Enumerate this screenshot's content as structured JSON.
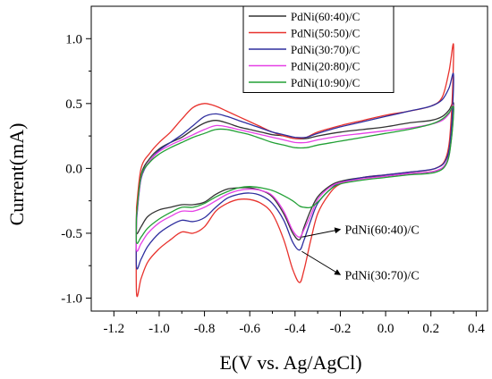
{
  "chart_data": {
    "type": "line",
    "title": "",
    "xlabel": "E(V vs. Ag/AgCl)",
    "ylabel": "Current(mA)",
    "xlim": [
      -1.3,
      0.45
    ],
    "ylim": [
      -1.1,
      1.25
    ],
    "x_ticks": [
      -1.2,
      -1.0,
      -0.8,
      -0.6,
      -0.4,
      -0.2,
      0.0,
      0.2,
      0.4
    ],
    "x_tick_labels": [
      "-1.2",
      "-1.0",
      "-0.8",
      "-0.6",
      "-0.4",
      "-0.2",
      "0.0",
      "0.2",
      "0.4"
    ],
    "y_ticks": [
      -1.0,
      -0.5,
      0.0,
      0.5,
      1.0
    ],
    "y_tick_labels": [
      "-1.0",
      "-0.5",
      "0.0",
      "0.5",
      "1.0"
    ],
    "grid": false,
    "legend_position": "top-right",
    "series": [
      {
        "name": "PdNi(60:40)/C",
        "color": "#333333",
        "forward": [
          [
            -1.1,
            -0.35
          ],
          [
            -1.08,
            -0.05
          ],
          [
            -1.04,
            0.08
          ],
          [
            -1.0,
            0.15
          ],
          [
            -0.95,
            0.2
          ],
          [
            -0.9,
            0.24
          ],
          [
            -0.85,
            0.3
          ],
          [
            -0.8,
            0.35
          ],
          [
            -0.75,
            0.37
          ],
          [
            -0.7,
            0.35
          ],
          [
            -0.65,
            0.32
          ],
          [
            -0.6,
            0.3
          ],
          [
            -0.55,
            0.28
          ],
          [
            -0.5,
            0.26
          ],
          [
            -0.45,
            0.25
          ],
          [
            -0.4,
            0.23
          ],
          [
            -0.35,
            0.23
          ],
          [
            -0.3,
            0.25
          ],
          [
            -0.2,
            0.28
          ],
          [
            -0.1,
            0.3
          ],
          [
            0.0,
            0.32
          ],
          [
            0.1,
            0.35
          ],
          [
            0.2,
            0.37
          ],
          [
            0.25,
            0.4
          ],
          [
            0.28,
            0.45
          ],
          [
            0.3,
            0.5
          ]
        ],
        "reverse": [
          [
            0.3,
            0.5
          ],
          [
            0.29,
            0.25
          ],
          [
            0.27,
            0.05
          ],
          [
            0.22,
            -0.02
          ],
          [
            0.1,
            -0.04
          ],
          [
            0.0,
            -0.06
          ],
          [
            -0.1,
            -0.07
          ],
          [
            -0.2,
            -0.1
          ],
          [
            -0.25,
            -0.14
          ],
          [
            -0.3,
            -0.22
          ],
          [
            -0.33,
            -0.32
          ],
          [
            -0.36,
            -0.45
          ],
          [
            -0.38,
            -0.55
          ],
          [
            -0.41,
            -0.5
          ],
          [
            -0.45,
            -0.35
          ],
          [
            -0.5,
            -0.22
          ],
          [
            -0.55,
            -0.17
          ],
          [
            -0.6,
            -0.15
          ],
          [
            -0.65,
            -0.15
          ],
          [
            -0.7,
            -0.16
          ],
          [
            -0.75,
            -0.2
          ],
          [
            -0.8,
            -0.26
          ],
          [
            -0.85,
            -0.28
          ],
          [
            -0.9,
            -0.28
          ],
          [
            -0.95,
            -0.3
          ],
          [
            -1.0,
            -0.32
          ],
          [
            -1.05,
            -0.37
          ],
          [
            -1.08,
            -0.45
          ],
          [
            -1.1,
            -0.5
          ],
          [
            -1.1,
            -0.35
          ]
        ]
      },
      {
        "name": "PdNi(50:50)/C",
        "color": "#e8322d",
        "forward": [
          [
            -1.1,
            -0.3
          ],
          [
            -1.08,
            0.0
          ],
          [
            -1.04,
            0.12
          ],
          [
            -1.0,
            0.2
          ],
          [
            -0.95,
            0.28
          ],
          [
            -0.9,
            0.38
          ],
          [
            -0.85,
            0.47
          ],
          [
            -0.8,
            0.5
          ],
          [
            -0.75,
            0.48
          ],
          [
            -0.7,
            0.44
          ],
          [
            -0.65,
            0.4
          ],
          [
            -0.6,
            0.36
          ],
          [
            -0.55,
            0.32
          ],
          [
            -0.5,
            0.28
          ],
          [
            -0.45,
            0.25
          ],
          [
            -0.4,
            0.23
          ],
          [
            -0.35,
            0.24
          ],
          [
            -0.3,
            0.28
          ],
          [
            -0.2,
            0.33
          ],
          [
            -0.1,
            0.37
          ],
          [
            0.0,
            0.41
          ],
          [
            0.1,
            0.44
          ],
          [
            0.2,
            0.48
          ],
          [
            0.25,
            0.55
          ],
          [
            0.28,
            0.75
          ],
          [
            0.3,
            0.95
          ]
        ],
        "reverse": [
          [
            0.3,
            0.95
          ],
          [
            0.29,
            0.4
          ],
          [
            0.27,
            0.1
          ],
          [
            0.22,
            0.0
          ],
          [
            0.1,
            -0.03
          ],
          [
            0.0,
            -0.05
          ],
          [
            -0.1,
            -0.07
          ],
          [
            -0.2,
            -0.12
          ],
          [
            -0.25,
            -0.2
          ],
          [
            -0.3,
            -0.35
          ],
          [
            -0.33,
            -0.55
          ],
          [
            -0.36,
            -0.78
          ],
          [
            -0.38,
            -0.88
          ],
          [
            -0.41,
            -0.78
          ],
          [
            -0.45,
            -0.55
          ],
          [
            -0.5,
            -0.35
          ],
          [
            -0.55,
            -0.27
          ],
          [
            -0.6,
            -0.24
          ],
          [
            -0.65,
            -0.24
          ],
          [
            -0.7,
            -0.27
          ],
          [
            -0.75,
            -0.33
          ],
          [
            -0.8,
            -0.45
          ],
          [
            -0.85,
            -0.5
          ],
          [
            -0.9,
            -0.49
          ],
          [
            -0.95,
            -0.55
          ],
          [
            -1.0,
            -0.62
          ],
          [
            -1.05,
            -0.72
          ],
          [
            -1.08,
            -0.85
          ],
          [
            -1.1,
            -0.96
          ],
          [
            -1.1,
            -0.3
          ]
        ]
      },
      {
        "name": "PdNi(30:70)/C",
        "color": "#2e2e9e",
        "forward": [
          [
            -1.1,
            -0.4
          ],
          [
            -1.08,
            -0.08
          ],
          [
            -1.04,
            0.06
          ],
          [
            -1.0,
            0.14
          ],
          [
            -0.95,
            0.2
          ],
          [
            -0.9,
            0.26
          ],
          [
            -0.85,
            0.33
          ],
          [
            -0.8,
            0.4
          ],
          [
            -0.75,
            0.42
          ],
          [
            -0.7,
            0.4
          ],
          [
            -0.65,
            0.37
          ],
          [
            -0.6,
            0.34
          ],
          [
            -0.55,
            0.31
          ],
          [
            -0.5,
            0.28
          ],
          [
            -0.45,
            0.26
          ],
          [
            -0.4,
            0.24
          ],
          [
            -0.35,
            0.24
          ],
          [
            -0.3,
            0.27
          ],
          [
            -0.2,
            0.32
          ],
          [
            -0.1,
            0.36
          ],
          [
            0.0,
            0.4
          ],
          [
            0.1,
            0.44
          ],
          [
            0.2,
            0.48
          ],
          [
            0.25,
            0.53
          ],
          [
            0.28,
            0.62
          ],
          [
            0.3,
            0.72
          ]
        ],
        "reverse": [
          [
            0.3,
            0.72
          ],
          [
            0.29,
            0.3
          ],
          [
            0.27,
            0.08
          ],
          [
            0.22,
            0.0
          ],
          [
            0.1,
            -0.03
          ],
          [
            0.0,
            -0.05
          ],
          [
            -0.1,
            -0.07
          ],
          [
            -0.2,
            -0.11
          ],
          [
            -0.25,
            -0.17
          ],
          [
            -0.3,
            -0.27
          ],
          [
            -0.33,
            -0.4
          ],
          [
            -0.36,
            -0.55
          ],
          [
            -0.38,
            -0.63
          ],
          [
            -0.41,
            -0.57
          ],
          [
            -0.45,
            -0.4
          ],
          [
            -0.5,
            -0.27
          ],
          [
            -0.55,
            -0.21
          ],
          [
            -0.6,
            -0.19
          ],
          [
            -0.65,
            -0.2
          ],
          [
            -0.7,
            -0.23
          ],
          [
            -0.75,
            -0.3
          ],
          [
            -0.8,
            -0.38
          ],
          [
            -0.85,
            -0.41
          ],
          [
            -0.9,
            -0.4
          ],
          [
            -0.95,
            -0.44
          ],
          [
            -1.0,
            -0.5
          ],
          [
            -1.05,
            -0.6
          ],
          [
            -1.08,
            -0.7
          ],
          [
            -1.1,
            -0.76
          ],
          [
            -1.1,
            -0.4
          ]
        ]
      },
      {
        "name": "PdNi(20:80)/C",
        "color": "#e640e6",
        "forward": [
          [
            -1.1,
            -0.38
          ],
          [
            -1.08,
            -0.07
          ],
          [
            -1.04,
            0.06
          ],
          [
            -1.0,
            0.13
          ],
          [
            -0.95,
            0.18
          ],
          [
            -0.9,
            0.22
          ],
          [
            -0.85,
            0.26
          ],
          [
            -0.8,
            0.3
          ],
          [
            -0.75,
            0.33
          ],
          [
            -0.7,
            0.32
          ],
          [
            -0.65,
            0.3
          ],
          [
            -0.6,
            0.28
          ],
          [
            -0.55,
            0.26
          ],
          [
            -0.5,
            0.24
          ],
          [
            -0.45,
            0.22
          ],
          [
            -0.4,
            0.2
          ],
          [
            -0.35,
            0.2
          ],
          [
            -0.3,
            0.22
          ],
          [
            -0.2,
            0.25
          ],
          [
            -0.1,
            0.27
          ],
          [
            0.0,
            0.29
          ],
          [
            0.1,
            0.31
          ],
          [
            0.2,
            0.34
          ],
          [
            0.25,
            0.37
          ],
          [
            0.28,
            0.42
          ],
          [
            0.3,
            0.48
          ]
        ],
        "reverse": [
          [
            0.3,
            0.48
          ],
          [
            0.29,
            0.22
          ],
          [
            0.27,
            0.05
          ],
          [
            0.22,
            -0.02
          ],
          [
            0.1,
            -0.04
          ],
          [
            0.0,
            -0.06
          ],
          [
            -0.1,
            -0.08
          ],
          [
            -0.2,
            -0.11
          ],
          [
            -0.25,
            -0.15
          ],
          [
            -0.3,
            -0.24
          ],
          [
            -0.33,
            -0.36
          ],
          [
            -0.36,
            -0.47
          ],
          [
            -0.38,
            -0.53
          ],
          [
            -0.41,
            -0.48
          ],
          [
            -0.45,
            -0.33
          ],
          [
            -0.5,
            -0.21
          ],
          [
            -0.55,
            -0.17
          ],
          [
            -0.6,
            -0.16
          ],
          [
            -0.65,
            -0.17
          ],
          [
            -0.7,
            -0.2
          ],
          [
            -0.75,
            -0.25
          ],
          [
            -0.8,
            -0.3
          ],
          [
            -0.85,
            -0.33
          ],
          [
            -0.9,
            -0.33
          ],
          [
            -0.95,
            -0.37
          ],
          [
            -1.0,
            -0.42
          ],
          [
            -1.05,
            -0.5
          ],
          [
            -1.08,
            -0.58
          ],
          [
            -1.1,
            -0.63
          ],
          [
            -1.1,
            -0.38
          ]
        ]
      },
      {
        "name": "PdNi(10:90)/C",
        "color": "#22a035",
        "forward": [
          [
            -1.1,
            -0.36
          ],
          [
            -1.08,
            -0.06
          ],
          [
            -1.04,
            0.05
          ],
          [
            -1.0,
            0.11
          ],
          [
            -0.95,
            0.16
          ],
          [
            -0.9,
            0.2
          ],
          [
            -0.85,
            0.24
          ],
          [
            -0.8,
            0.27
          ],
          [
            -0.75,
            0.3
          ],
          [
            -0.7,
            0.3
          ],
          [
            -0.65,
            0.28
          ],
          [
            -0.6,
            0.26
          ],
          [
            -0.55,
            0.23
          ],
          [
            -0.5,
            0.2
          ],
          [
            -0.45,
            0.18
          ],
          [
            -0.4,
            0.16
          ],
          [
            -0.35,
            0.16
          ],
          [
            -0.3,
            0.18
          ],
          [
            -0.2,
            0.21
          ],
          [
            -0.1,
            0.24
          ],
          [
            0.0,
            0.27
          ],
          [
            0.1,
            0.3
          ],
          [
            0.2,
            0.34
          ],
          [
            0.25,
            0.38
          ],
          [
            0.28,
            0.43
          ],
          [
            0.3,
            0.47
          ]
        ],
        "reverse": [
          [
            0.3,
            0.47
          ],
          [
            0.29,
            0.22
          ],
          [
            0.27,
            0.04
          ],
          [
            0.22,
            -0.03
          ],
          [
            0.1,
            -0.05
          ],
          [
            0.0,
            -0.07
          ],
          [
            -0.1,
            -0.09
          ],
          [
            -0.2,
            -0.12
          ],
          [
            -0.25,
            -0.17
          ],
          [
            -0.3,
            -0.26
          ],
          [
            -0.33,
            -0.3
          ],
          [
            -0.36,
            -0.3
          ],
          [
            -0.38,
            -0.29
          ],
          [
            -0.41,
            -0.25
          ],
          [
            -0.45,
            -0.21
          ],
          [
            -0.5,
            -0.17
          ],
          [
            -0.55,
            -0.15
          ],
          [
            -0.6,
            -0.14
          ],
          [
            -0.65,
            -0.15
          ],
          [
            -0.7,
            -0.18
          ],
          [
            -0.75,
            -0.22
          ],
          [
            -0.8,
            -0.27
          ],
          [
            -0.85,
            -0.3
          ],
          [
            -0.9,
            -0.3
          ],
          [
            -0.95,
            -0.34
          ],
          [
            -1.0,
            -0.39
          ],
          [
            -1.05,
            -0.46
          ],
          [
            -1.08,
            -0.53
          ],
          [
            -1.1,
            -0.57
          ],
          [
            -1.1,
            -0.36
          ]
        ]
      }
    ],
    "annotations": [
      {
        "text": "PdNi(60:40)/C",
        "from": [
          -0.37,
          -0.53
        ],
        "to": [
          -0.2,
          -0.47
        ]
      },
      {
        "text": "PdNi(30:70)/C",
        "from": [
          -0.37,
          -0.64
        ],
        "to": [
          -0.2,
          -0.82
        ]
      }
    ]
  }
}
